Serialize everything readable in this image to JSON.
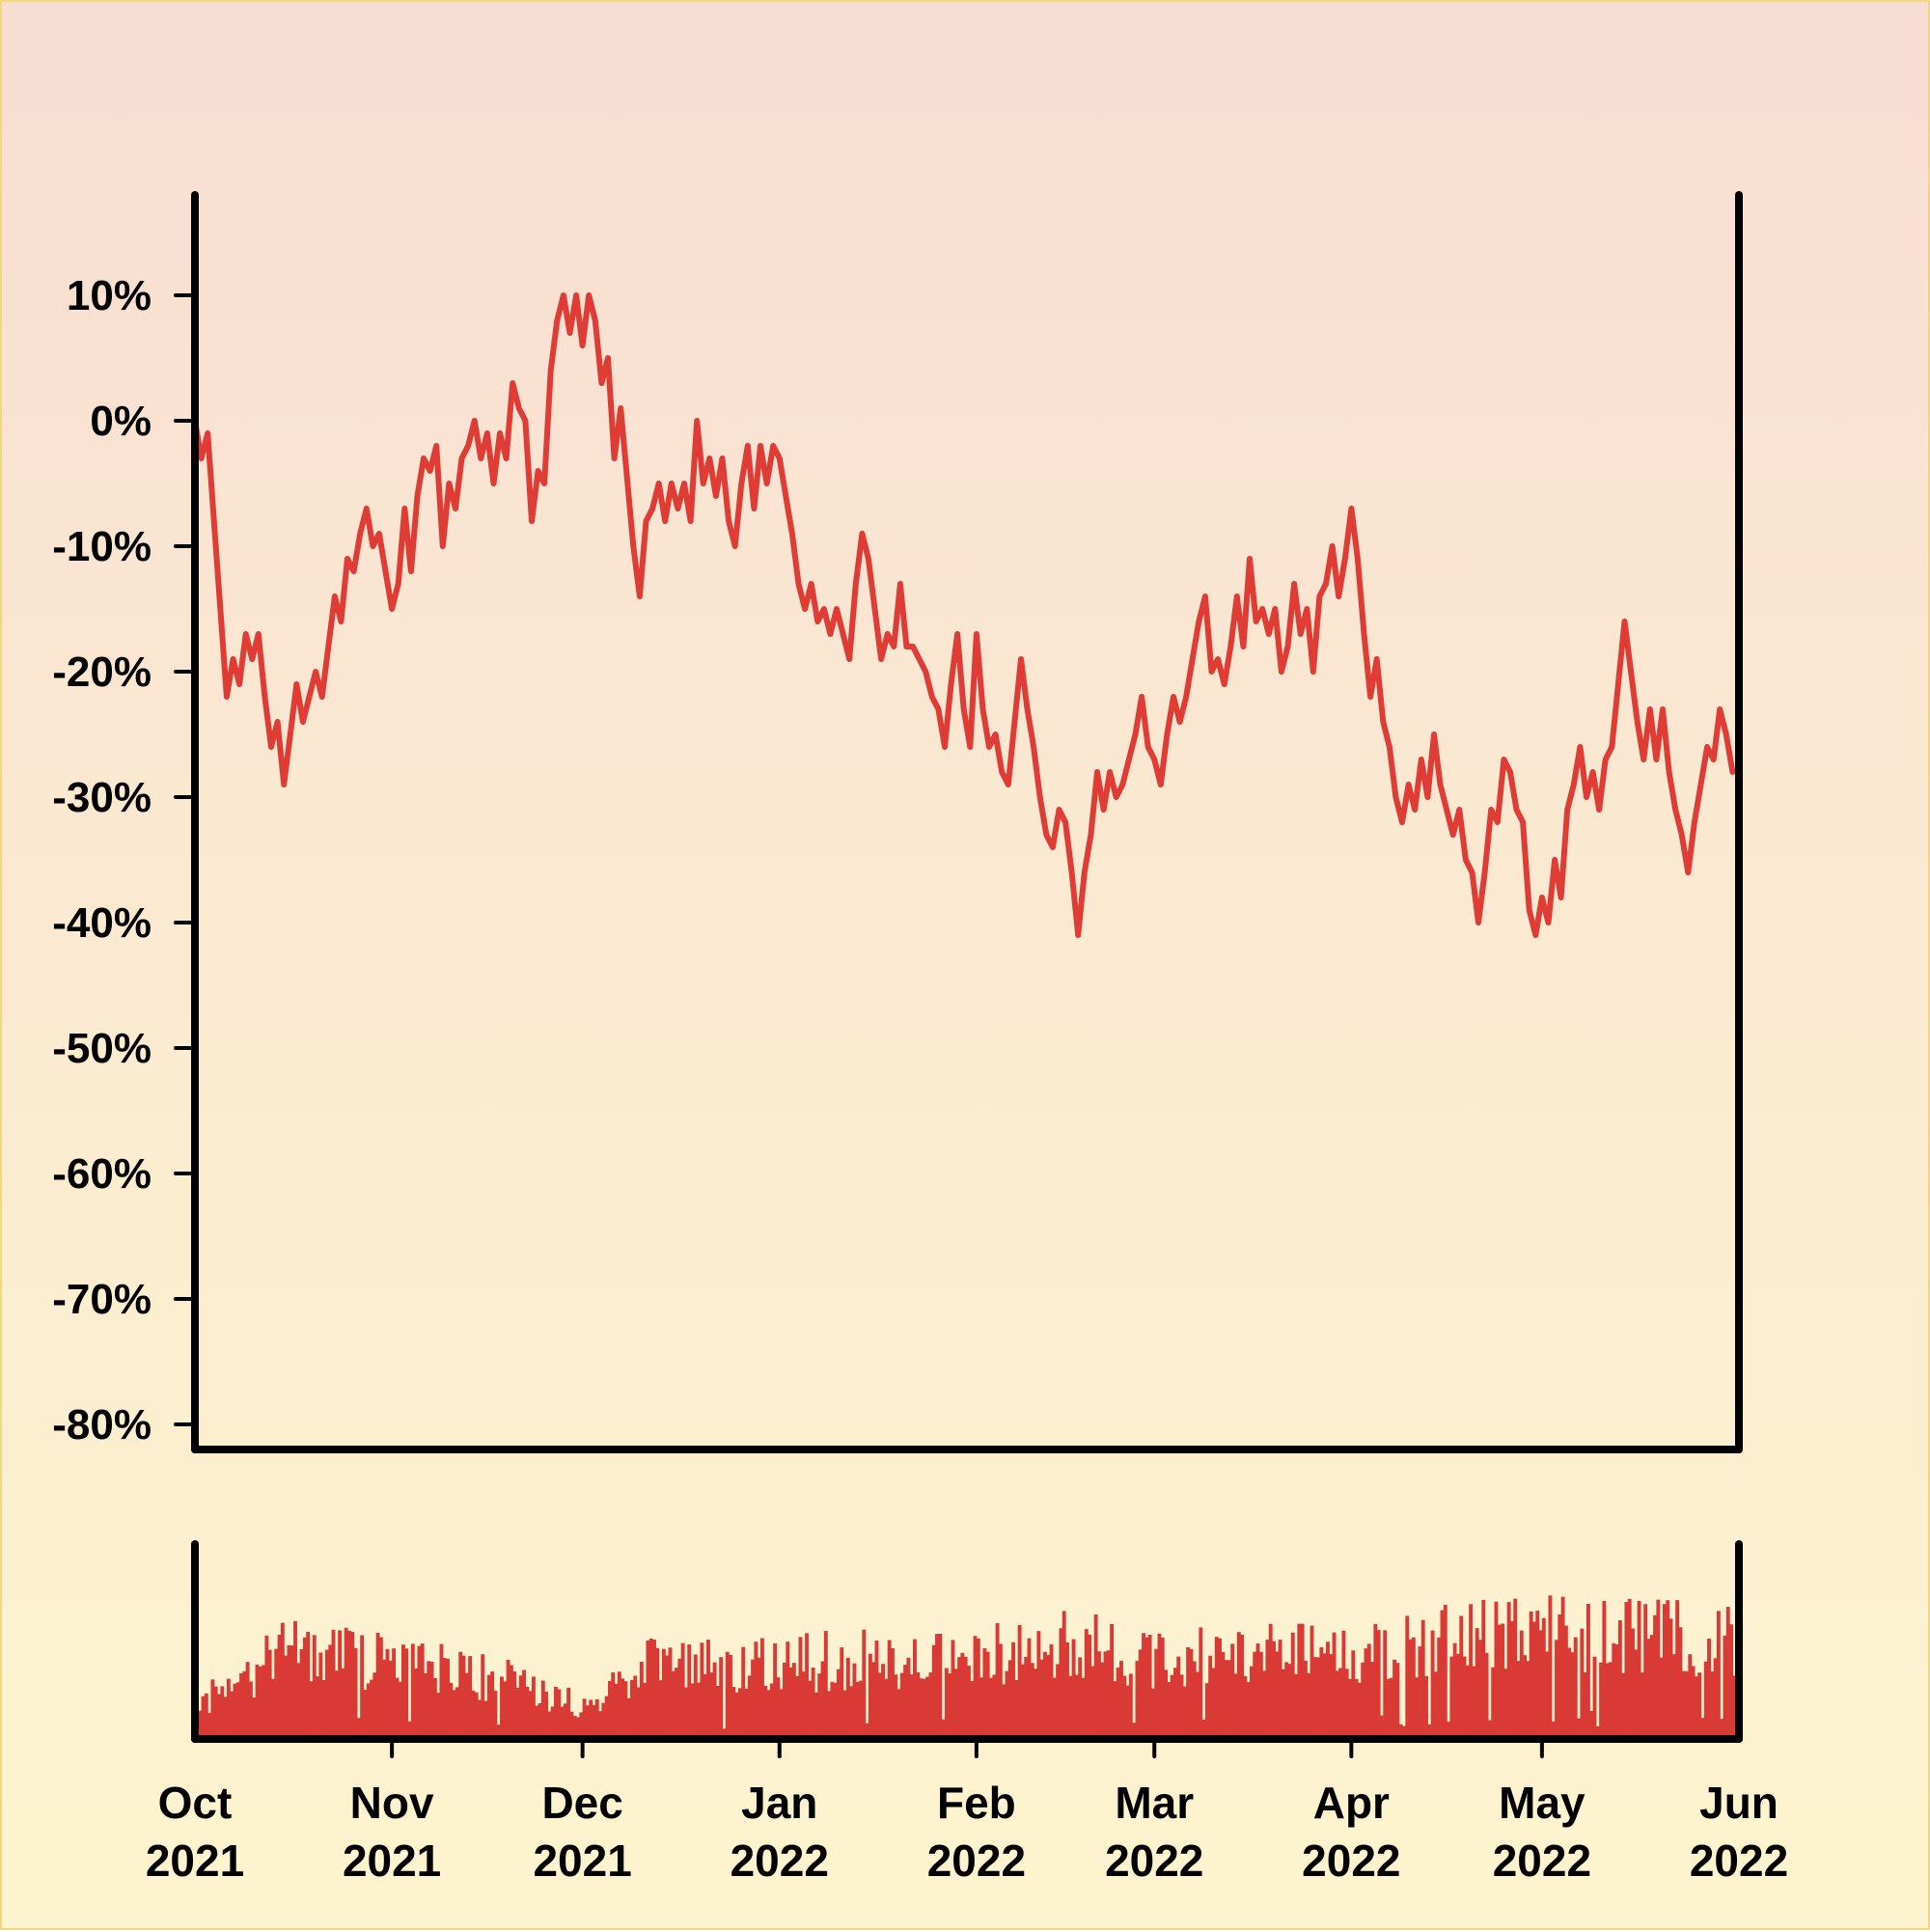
{
  "chart_data": {
    "type": "line",
    "title": "",
    "xlabel": "",
    "ylabel": "",
    "colors": {
      "line": "#e03c36",
      "volume": "#d93a35",
      "axis": "#000000"
    },
    "y_axis": {
      "ylim": [
        -82,
        18
      ],
      "ticks": [
        10,
        0,
        -10,
        -20,
        -30,
        -40,
        -50,
        -60,
        -70,
        -80
      ],
      "tick_labels": [
        "10%",
        "0%",
        "-10%",
        "-20%",
        "-30%",
        "-40%",
        "-50%",
        "-60%",
        "-70%",
        "-80%"
      ]
    },
    "x_axis": {
      "xlim": [
        "2021-10-01",
        "2022-06-01"
      ],
      "ticks": [
        "2021-10-01",
        "2021-11-01",
        "2021-12-01",
        "2022-01-01",
        "2022-02-01",
        "2022-03-01",
        "2022-04-01",
        "2022-05-01",
        "2022-06-01"
      ],
      "tick_labels": [
        {
          "month": "Oct",
          "year": "2021"
        },
        {
          "month": "Nov",
          "year": "2021"
        },
        {
          "month": "Dec",
          "year": "2021"
        },
        {
          "month": "Jan",
          "year": "2022"
        },
        {
          "month": "Feb",
          "year": "2022"
        },
        {
          "month": "Mar",
          "year": "2022"
        },
        {
          "month": "Apr",
          "year": "2022"
        },
        {
          "month": "May",
          "year": "2022"
        },
        {
          "month": "Jun",
          "year": "2022"
        }
      ]
    },
    "series": [
      {
        "values": [
          [
            "2021-10-01",
            0
          ],
          [
            "2021-10-02",
            -3
          ],
          [
            "2021-10-03",
            -1
          ],
          [
            "2021-10-06",
            -22
          ],
          [
            "2021-10-07",
            -19
          ],
          [
            "2021-10-08",
            -21
          ],
          [
            "2021-10-09",
            -17
          ],
          [
            "2021-10-10",
            -19
          ],
          [
            "2021-10-11",
            -17
          ],
          [
            "2021-10-12",
            -22
          ],
          [
            "2021-10-13",
            -26
          ],
          [
            "2021-10-14",
            -24
          ],
          [
            "2021-10-15",
            -29
          ],
          [
            "2021-10-16",
            -25
          ],
          [
            "2021-10-17",
            -21
          ],
          [
            "2021-10-18",
            -24
          ],
          [
            "2021-10-19",
            -22
          ],
          [
            "2021-10-20",
            -20
          ],
          [
            "2021-10-21",
            -22
          ],
          [
            "2021-10-22",
            -18
          ],
          [
            "2021-10-23",
            -14
          ],
          [
            "2021-10-24",
            -16
          ],
          [
            "2021-10-25",
            -11
          ],
          [
            "2021-10-26",
            -12
          ],
          [
            "2021-10-27",
            -9
          ],
          [
            "2021-10-28",
            -7
          ],
          [
            "2021-10-29",
            -10
          ],
          [
            "2021-10-30",
            -9
          ],
          [
            "2021-10-31",
            -12
          ],
          [
            "2021-11-01",
            -15
          ],
          [
            "2021-11-02",
            -13
          ],
          [
            "2021-11-03",
            -7
          ],
          [
            "2021-11-04",
            -12
          ],
          [
            "2021-11-05",
            -6
          ],
          [
            "2021-11-06",
            -3
          ],
          [
            "2021-11-07",
            -4
          ],
          [
            "2021-11-08",
            -2
          ],
          [
            "2021-11-09",
            -10
          ],
          [
            "2021-11-10",
            -5
          ],
          [
            "2021-11-11",
            -7
          ],
          [
            "2021-11-12",
            -3
          ],
          [
            "2021-11-13",
            -2
          ],
          [
            "2021-11-14",
            0
          ],
          [
            "2021-11-15",
            -3
          ],
          [
            "2021-11-16",
            -1
          ],
          [
            "2021-11-17",
            -5
          ],
          [
            "2021-11-18",
            -1
          ],
          [
            "2021-11-19",
            -3
          ],
          [
            "2021-11-20",
            3
          ],
          [
            "2021-11-21",
            1
          ],
          [
            "2021-11-22",
            0
          ],
          [
            "2021-11-23",
            -8
          ],
          [
            "2021-11-24",
            -4
          ],
          [
            "2021-11-25",
            -5
          ],
          [
            "2021-11-26",
            4
          ],
          [
            "2021-11-27",
            8
          ],
          [
            "2021-11-28",
            10
          ],
          [
            "2021-11-29",
            7
          ],
          [
            "2021-11-30",
            10
          ],
          [
            "2021-12-01",
            6
          ],
          [
            "2021-12-02",
            10
          ],
          [
            "2021-12-03",
            8
          ],
          [
            "2021-12-04",
            3
          ],
          [
            "2021-12-05",
            5
          ],
          [
            "2021-12-06",
            -3
          ],
          [
            "2021-12-07",
            1
          ],
          [
            "2021-12-09",
            -10
          ],
          [
            "2021-12-10",
            -14
          ],
          [
            "2021-12-11",
            -8
          ],
          [
            "2021-12-12",
            -7
          ],
          [
            "2021-12-13",
            -5
          ],
          [
            "2021-12-14",
            -8
          ],
          [
            "2021-12-15",
            -5
          ],
          [
            "2021-12-16",
            -7
          ],
          [
            "2021-12-17",
            -5
          ],
          [
            "2021-12-18",
            -8
          ],
          [
            "2021-12-19",
            0
          ],
          [
            "2021-12-20",
            -5
          ],
          [
            "2021-12-21",
            -3
          ],
          [
            "2021-12-22",
            -6
          ],
          [
            "2021-12-23",
            -3
          ],
          [
            "2021-12-24",
            -8
          ],
          [
            "2021-12-25",
            -10
          ],
          [
            "2021-12-26",
            -5
          ],
          [
            "2021-12-27",
            -2
          ],
          [
            "2021-12-28",
            -7
          ],
          [
            "2021-12-29",
            -2
          ],
          [
            "2021-12-30",
            -5
          ],
          [
            "2021-12-31",
            -2
          ],
          [
            "2022-01-01",
            -3
          ],
          [
            "2022-01-02",
            -6
          ],
          [
            "2022-01-03",
            -9
          ],
          [
            "2022-01-04",
            -13
          ],
          [
            "2022-01-05",
            -15
          ],
          [
            "2022-01-06",
            -13
          ],
          [
            "2022-01-07",
            -16
          ],
          [
            "2022-01-08",
            -15
          ],
          [
            "2022-01-09",
            -17
          ],
          [
            "2022-01-10",
            -15
          ],
          [
            "2022-01-11",
            -17
          ],
          [
            "2022-01-12",
            -19
          ],
          [
            "2022-01-13",
            -13
          ],
          [
            "2022-01-14",
            -9
          ],
          [
            "2022-01-15",
            -11
          ],
          [
            "2022-01-16",
            -15
          ],
          [
            "2022-01-17",
            -19
          ],
          [
            "2022-01-18",
            -17
          ],
          [
            "2022-01-19",
            -18
          ],
          [
            "2022-01-20",
            -13
          ],
          [
            "2022-01-21",
            -18
          ],
          [
            "2022-01-22",
            -18
          ],
          [
            "2022-01-23",
            -19
          ],
          [
            "2022-01-24",
            -20
          ],
          [
            "2022-01-25",
            -22
          ],
          [
            "2022-01-26",
            -23
          ],
          [
            "2022-01-27",
            -26
          ],
          [
            "2022-01-28",
            -21
          ],
          [
            "2022-01-29",
            -17
          ],
          [
            "2022-01-30",
            -23
          ],
          [
            "2022-01-31",
            -26
          ],
          [
            "2022-02-01",
            -17
          ],
          [
            "2022-02-02",
            -23
          ],
          [
            "2022-02-03",
            -26
          ],
          [
            "2022-02-04",
            -25
          ],
          [
            "2022-02-05",
            -28
          ],
          [
            "2022-02-06",
            -29
          ],
          [
            "2022-02-07",
            -24
          ],
          [
            "2022-02-08",
            -19
          ],
          [
            "2022-02-09",
            -23
          ],
          [
            "2022-02-10",
            -26
          ],
          [
            "2022-02-11",
            -30
          ],
          [
            "2022-02-12",
            -33
          ],
          [
            "2022-02-13",
            -34
          ],
          [
            "2022-02-14",
            -31
          ],
          [
            "2022-02-15",
            -32
          ],
          [
            "2022-02-16",
            -36
          ],
          [
            "2022-02-17",
            -41
          ],
          [
            "2022-02-18",
            -36
          ],
          [
            "2022-02-19",
            -33
          ],
          [
            "2022-02-20",
            -28
          ],
          [
            "2022-02-21",
            -31
          ],
          [
            "2022-02-22",
            -28
          ],
          [
            "2022-02-23",
            -30
          ],
          [
            "2022-02-24",
            -29
          ],
          [
            "2022-02-25",
            -27
          ],
          [
            "2022-02-26",
            -25
          ],
          [
            "2022-02-27",
            -22
          ],
          [
            "2022-02-28",
            -26
          ],
          [
            "2022-03-01",
            -27
          ],
          [
            "2022-03-02",
            -29
          ],
          [
            "2022-03-03",
            -25
          ],
          [
            "2022-03-04",
            -22
          ],
          [
            "2022-03-05",
            -24
          ],
          [
            "2022-03-06",
            -22
          ],
          [
            "2022-03-07",
            -19
          ],
          [
            "2022-03-08",
            -16
          ],
          [
            "2022-03-09",
            -14
          ],
          [
            "2022-03-10",
            -20
          ],
          [
            "2022-03-11",
            -19
          ],
          [
            "2022-03-12",
            -21
          ],
          [
            "2022-03-13",
            -18
          ],
          [
            "2022-03-14",
            -14
          ],
          [
            "2022-03-15",
            -18
          ],
          [
            "2022-03-16",
            -11
          ],
          [
            "2022-03-17",
            -16
          ],
          [
            "2022-03-18",
            -15
          ],
          [
            "2022-03-19",
            -17
          ],
          [
            "2022-03-20",
            -15
          ],
          [
            "2022-03-21",
            -20
          ],
          [
            "2022-03-22",
            -18
          ],
          [
            "2022-03-23",
            -13
          ],
          [
            "2022-03-24",
            -17
          ],
          [
            "2022-03-25",
            -15
          ],
          [
            "2022-03-26",
            -20
          ],
          [
            "2022-03-27",
            -14
          ],
          [
            "2022-03-28",
            -13
          ],
          [
            "2022-03-29",
            -10
          ],
          [
            "2022-03-30",
            -14
          ],
          [
            "2022-03-31",
            -11
          ],
          [
            "2022-04-01",
            -7
          ],
          [
            "2022-04-02",
            -11
          ],
          [
            "2022-04-03",
            -17
          ],
          [
            "2022-04-04",
            -22
          ],
          [
            "2022-04-05",
            -19
          ],
          [
            "2022-04-06",
            -24
          ],
          [
            "2022-04-07",
            -26
          ],
          [
            "2022-04-08",
            -30
          ],
          [
            "2022-04-09",
            -32
          ],
          [
            "2022-04-10",
            -29
          ],
          [
            "2022-04-11",
            -31
          ],
          [
            "2022-04-12",
            -27
          ],
          [
            "2022-04-13",
            -30
          ],
          [
            "2022-04-14",
            -25
          ],
          [
            "2022-04-15",
            -29
          ],
          [
            "2022-04-16",
            -31
          ],
          [
            "2022-04-17",
            -33
          ],
          [
            "2022-04-18",
            -31
          ],
          [
            "2022-04-19",
            -35
          ],
          [
            "2022-04-20",
            -36
          ],
          [
            "2022-04-21",
            -40
          ],
          [
            "2022-04-22",
            -36
          ],
          [
            "2022-04-23",
            -31
          ],
          [
            "2022-04-24",
            -32
          ],
          [
            "2022-04-25",
            -27
          ],
          [
            "2022-04-26",
            -28
          ],
          [
            "2022-04-27",
            -31
          ],
          [
            "2022-04-28",
            -32
          ],
          [
            "2022-04-29",
            -39
          ],
          [
            "2022-04-30",
            -41
          ],
          [
            "2022-05-01",
            -38
          ],
          [
            "2022-05-02",
            -40
          ],
          [
            "2022-05-03",
            -35
          ],
          [
            "2022-05-04",
            -38
          ],
          [
            "2022-05-05",
            -31
          ],
          [
            "2022-05-06",
            -29
          ],
          [
            "2022-05-07",
            -26
          ],
          [
            "2022-05-08",
            -30
          ],
          [
            "2022-05-09",
            -28
          ],
          [
            "2022-05-10",
            -31
          ],
          [
            "2022-05-11",
            -27
          ],
          [
            "2022-05-12",
            -26
          ],
          [
            "2022-05-14",
            -16
          ],
          [
            "2022-05-15",
            -20
          ],
          [
            "2022-05-16",
            -24
          ],
          [
            "2022-05-17",
            -27
          ],
          [
            "2022-05-18",
            -23
          ],
          [
            "2022-05-19",
            -27
          ],
          [
            "2022-05-20",
            -23
          ],
          [
            "2022-05-21",
            -28
          ],
          [
            "2022-05-22",
            -31
          ],
          [
            "2022-05-23",
            -33
          ],
          [
            "2022-05-24",
            -36
          ],
          [
            "2022-05-25",
            -32
          ],
          [
            "2022-05-26",
            -29
          ],
          [
            "2022-05-27",
            -26
          ],
          [
            "2022-05-28",
            -27
          ],
          [
            "2022-05-29",
            -23
          ],
          [
            "2022-05-30",
            -25
          ],
          [
            "2022-05-31",
            -28
          ]
        ]
      }
    ],
    "volume": {
      "relative_scale": [
        0,
        100
      ],
      "monthly_envelope": [
        [
          "2021-10-01",
          25
        ],
        [
          "2021-10-15",
          62
        ],
        [
          "2021-11-01",
          55
        ],
        [
          "2021-11-20",
          42
        ],
        [
          "2021-12-01",
          23
        ],
        [
          "2021-12-10",
          52
        ],
        [
          "2022-01-01",
          55
        ],
        [
          "2022-01-20",
          58
        ],
        [
          "2022-02-01",
          60
        ],
        [
          "2022-02-15",
          68
        ],
        [
          "2022-03-01",
          60
        ],
        [
          "2022-03-20",
          62
        ],
        [
          "2022-04-01",
          58
        ],
        [
          "2022-04-15",
          74
        ],
        [
          "2022-05-01",
          75
        ],
        [
          "2022-05-15",
          73
        ],
        [
          "2022-06-01",
          72
        ]
      ]
    }
  }
}
